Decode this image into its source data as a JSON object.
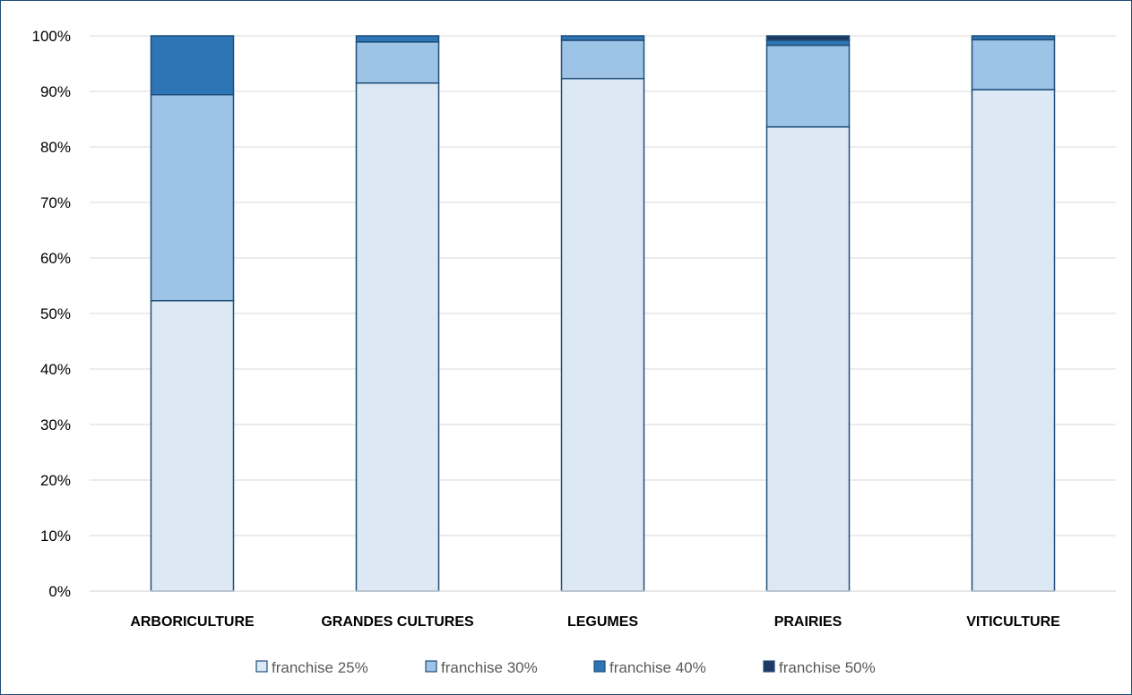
{
  "chart_data": {
    "type": "bar",
    "stacked": true,
    "percent": true,
    "categories": [
      "ARBORICULTURE",
      "GRANDES CULTURES",
      "LEGUMES",
      "PRAIRIES",
      "VITICULTURE"
    ],
    "series": [
      {
        "name": "franchise 25%",
        "color": "#dce9f5",
        "values": [
          52.3,
          91.5,
          92.3,
          83.6,
          90.3
        ]
      },
      {
        "name": "franchise 30%",
        "color": "#9dc3e6",
        "values": [
          37.1,
          7.4,
          6.9,
          14.7,
          9.0
        ]
      },
      {
        "name": "franchise 40%",
        "color": "#2e75b6",
        "values": [
          10.6,
          1.1,
          0.8,
          0.9,
          0.7
        ]
      },
      {
        "name": "franchise 50%",
        "color": "#1f3864",
        "values": [
          0,
          0,
          0,
          0.8,
          0
        ]
      }
    ],
    "ylim": [
      0,
      100
    ],
    "yticks": [
      "0%",
      "10%",
      "20%",
      "30%",
      "40%",
      "50%",
      "60%",
      "70%",
      "80%",
      "90%",
      "100%"
    ],
    "grid": true,
    "legend_position": "bottom",
    "title": "",
    "xlabel": "",
    "ylabel": ""
  }
}
